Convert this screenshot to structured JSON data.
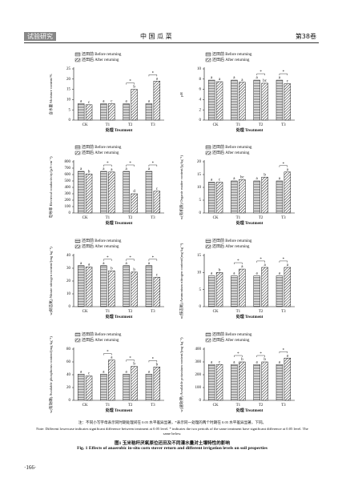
{
  "header": {
    "section": "试验研究",
    "journal": "中 国 瓜 菜",
    "volume": "第38卷"
  },
  "chart_data": [
    {
      "type": "bar",
      "ylabel": "含水量 Moisture content/%",
      "xlabel": "处理 Treatment",
      "categories": [
        "CK",
        "T1",
        "T2",
        "T3"
      ],
      "series": [
        {
          "name": "还田前 Before returning",
          "color": "#222222",
          "values": [
            8,
            8,
            8,
            8
          ],
          "labels": [
            "a",
            "a",
            "a",
            "a"
          ]
        },
        {
          "name": "还田后 After returning",
          "color": "#222222",
          "values": [
            7.5,
            8,
            15,
            19
          ],
          "labels": [
            "c",
            "c",
            "b",
            "a"
          ]
        }
      ],
      "stars": [
        null,
        null,
        "*",
        "*"
      ],
      "ylim": [
        0,
        25
      ],
      "yticks": [
        0,
        5,
        10,
        15,
        20,
        25
      ]
    },
    {
      "type": "bar",
      "ylabel": "pH",
      "xlabel": "处理 Treatment",
      "categories": [
        "CK",
        "T1",
        "T2",
        "T3"
      ],
      "series": [
        {
          "name": "还田前 Before returning",
          "color": "#222222",
          "values": [
            7.8,
            7.8,
            7.8,
            7.8
          ],
          "labels": [
            "a",
            "a",
            "a",
            "a"
          ]
        },
        {
          "name": "还田后 After returning",
          "color": "#222222",
          "values": [
            7.5,
            7.4,
            7.2,
            7.1
          ],
          "labels": [
            "a",
            "a",
            "bc",
            "c"
          ]
        }
      ],
      "stars": [
        null,
        null,
        "*",
        "*"
      ],
      "ylim": [
        0,
        10
      ],
      "yticks": [
        0,
        2,
        4,
        6,
        8,
        10
      ]
    },
    {
      "type": "bar",
      "ylabel": "电导率 Electrical conductivity/(μS·cm⁻¹)",
      "xlabel": "处理 Treatment",
      "categories": [
        "CK",
        "T1",
        "T2",
        "T3"
      ],
      "series": [
        {
          "name": "还田前 Before returning",
          "color": "#222222",
          "values": [
            650,
            650,
            650,
            650
          ],
          "labels": [
            "a",
            "a",
            "a",
            "a"
          ]
        },
        {
          "name": "还田后 After returning",
          "color": "#222222",
          "values": [
            610,
            640,
            300,
            340
          ],
          "labels": [
            "b",
            "a",
            "d",
            "c"
          ]
        }
      ],
      "stars": [
        null,
        "*",
        "*",
        "*"
      ],
      "ylim": [
        0,
        800
      ],
      "yticks": [
        0,
        100,
        200,
        300,
        400,
        500,
        600,
        700,
        800
      ]
    },
    {
      "type": "bar",
      "ylabel": "w(有机质) Organic matter content/(g·kg⁻¹)",
      "xlabel": "处理 Treatment",
      "categories": [
        "CK",
        "T1",
        "T2",
        "T3"
      ],
      "series": [
        {
          "name": "还田前 Before returning",
          "color": "#222222",
          "values": [
            12,
            12.5,
            12.5,
            12.5
          ],
          "labels": [
            "a",
            "a",
            "a",
            "a"
          ]
        },
        {
          "name": "还田后 After returning",
          "color": "#222222",
          "values": [
            12,
            13,
            14,
            16
          ],
          "labels": [
            "c",
            "bc",
            "b",
            "a"
          ]
        }
      ],
      "stars": [
        null,
        null,
        null,
        "*"
      ],
      "ylim": [
        0,
        20
      ],
      "yticks": [
        0,
        5,
        10,
        15,
        20
      ]
    },
    {
      "type": "bar",
      "ylabel": "w(硝态氮) Nitrate nitrogen content/(mg·kg⁻¹)",
      "xlabel": "处理 Treatment",
      "categories": [
        "CK",
        "T1",
        "T2",
        "T3"
      ],
      "series": [
        {
          "name": "还田前 Before returning",
          "color": "#222222",
          "values": [
            32,
            32,
            32,
            32
          ],
          "labels": [
            "a",
            "a",
            "a",
            "a"
          ]
        },
        {
          "name": "还田后 After returning",
          "color": "#222222",
          "values": [
            31,
            28,
            27,
            23
          ],
          "labels": [
            "a",
            "b",
            "b",
            "c"
          ]
        }
      ],
      "stars": [
        null,
        "*",
        "*",
        "*"
      ],
      "ylim": [
        0,
        40
      ],
      "yticks": [
        0,
        10,
        20,
        30,
        40
      ]
    },
    {
      "type": "bar",
      "ylabel": "w(铵态氮) Ammonium nitrogen content/(mg·kg⁻¹)",
      "xlabel": "处理 Treatment",
      "categories": [
        "CK",
        "T1",
        "T2",
        "T3"
      ],
      "series": [
        {
          "name": "还田前 Before returning",
          "color": "#222222",
          "values": [
            9,
            9,
            9,
            9
          ],
          "labels": [
            "a",
            "a",
            "a",
            "a"
          ]
        },
        {
          "name": "还田后 After returning",
          "color": "#222222",
          "values": [
            10,
            11,
            11.5,
            11.5
          ],
          "labels": [
            "b",
            "a",
            "a",
            "a"
          ]
        }
      ],
      "stars": [
        null,
        "*",
        "*",
        "*"
      ],
      "ylim": [
        0,
        15
      ],
      "yticks": [
        0,
        5,
        10,
        15
      ]
    },
    {
      "type": "bar",
      "ylabel": "w(有效磷) Available phosphorus content/(mg·kg⁻¹)",
      "xlabel": "处理 Treatment",
      "categories": [
        "CK",
        "T1",
        "T2",
        "T3"
      ],
      "series": [
        {
          "name": "还田前 Before returning",
          "color": "#222222",
          "values": [
            41,
            41,
            41,
            41
          ],
          "labels": [
            "a",
            "a",
            "a",
            "a"
          ]
        },
        {
          "name": "还田后 After returning",
          "color": "#222222",
          "values": [
            38,
            63,
            53,
            52
          ],
          "labels": [
            "c",
            "a",
            "b",
            "b"
          ]
        }
      ],
      "stars": [
        null,
        "*",
        "*",
        "*"
      ],
      "ylim": [
        0,
        80
      ],
      "yticks": [
        0,
        20,
        40,
        60,
        80
      ]
    },
    {
      "type": "bar",
      "ylabel": "w(速效钾) Available potassium content/(mg·kg⁻¹)",
      "xlabel": "处理 Treatment",
      "categories": [
        "CK",
        "T1",
        "T2",
        "T3"
      ],
      "series": [
        {
          "name": "还田前 Before returning",
          "color": "#222222",
          "values": [
            280,
            280,
            280,
            280
          ],
          "labels": [
            "a",
            "a",
            "a",
            "a"
          ]
        },
        {
          "name": "还田后 After returning",
          "color": "#222222",
          "values": [
            280,
            300,
            300,
            330
          ],
          "labels": [
            "c",
            "b",
            "b",
            "a"
          ]
        }
      ],
      "stars": [
        null,
        "*",
        "*",
        "*"
      ],
      "ylim": [
        0,
        400
      ],
      "yticks": [
        0,
        100,
        200,
        300,
        400
      ]
    }
  ],
  "note": {
    "zh": "注：不同小写字母表示同时期处理间在 0.05 水平差异显著，*表示同一处理的两个时期在 0.05 水平差异显著，下同。",
    "en": "Note: Different lowercase indicates significant difference between treatment at 0.05 level. * indicates the two periods of the same treatment have significant difference at 0.05 level. The same below."
  },
  "caption": {
    "zh": "图1 玉米秸秆厌氧原位还田及不同灌水量对土壤特性的影响",
    "en": "Fig. 1 Effects of anaerobic in-situ corn stover return and different irrigation levels on soil properties"
  },
  "page_number": "·166·"
}
